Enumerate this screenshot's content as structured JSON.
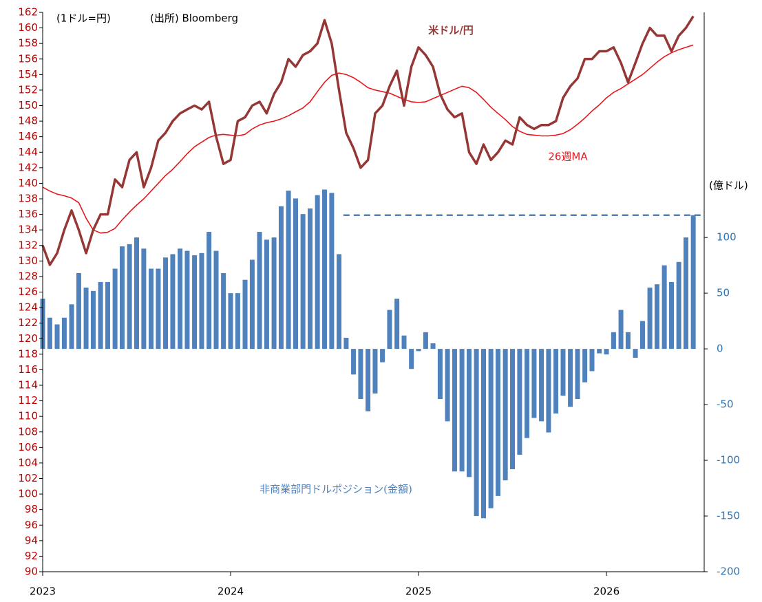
{
  "chart_data": {
    "type": "combo",
    "annotations": [
      "(1ドル=円)",
      "(出所) Bloomberg",
      "(億ドル)"
    ],
    "x": [
      2023.0,
      2023.038,
      2023.077,
      2023.115,
      2023.154,
      2023.192,
      2023.231,
      2023.269,
      2023.308,
      2023.346,
      2023.385,
      2023.423,
      2023.462,
      2023.5,
      2023.538,
      2023.577,
      2023.615,
      2023.654,
      2023.692,
      2023.731,
      2023.769,
      2023.808,
      2023.846,
      2023.885,
      2023.923,
      2023.962,
      2024.0,
      2024.038,
      2024.077,
      2024.115,
      2024.154,
      2024.192,
      2024.231,
      2024.269,
      2024.308,
      2024.346,
      2024.385,
      2024.423,
      2024.462,
      2024.5,
      2024.538,
      2024.577,
      2024.615,
      2024.654,
      2024.692,
      2024.731,
      2024.769,
      2024.808,
      2024.846,
      2024.885,
      2024.923,
      2024.962,
      2025.0,
      2025.038,
      2025.077,
      2025.115,
      2025.154,
      2025.192,
      2025.231,
      2025.269,
      2025.308,
      2025.346,
      2025.385,
      2025.423,
      2025.462,
      2025.5,
      2025.538,
      2025.577,
      2025.615,
      2025.654,
      2025.692,
      2025.731,
      2025.769,
      2025.808,
      2025.846,
      2025.885,
      2025.923,
      2025.962,
      2026.0,
      2026.038,
      2026.077,
      2026.115,
      2026.154,
      2026.192,
      2026.231,
      2026.269,
      2026.308,
      2026.346,
      2026.385,
      2026.423,
      2026.462
    ],
    "series": [
      {
        "name": "非商業部門ドルポジション(金額)",
        "kind": "bar",
        "axis": "y2",
        "color": "#4f81bd",
        "values": [
          45,
          28,
          22,
          28,
          40,
          68,
          55,
          52,
          60,
          60,
          72,
          92,
          94,
          100,
          90,
          72,
          72,
          82,
          85,
          90,
          88,
          84,
          86,
          105,
          88,
          68,
          50,
          50,
          62,
          80,
          105,
          98,
          100,
          128,
          142,
          135,
          121,
          126,
          138,
          143,
          140,
          85,
          10,
          -23,
          -45,
          -56,
          -40,
          -12,
          35,
          45,
          12,
          -18,
          -2,
          15,
          5,
          -45,
          -65,
          -110,
          -110,
          -115,
          -150,
          -152,
          -143,
          -132,
          -118,
          -108,
          -95,
          -80,
          -62,
          -65,
          -75,
          -58,
          -42,
          -52,
          -45,
          -30,
          -20,
          -4,
          -5,
          15,
          35,
          15,
          -8,
          25,
          55,
          58,
          75,
          60,
          78,
          100,
          120
        ]
      },
      {
        "name": "26週MA",
        "kind": "line",
        "axis": "y",
        "color": "#e8161b",
        "values": [
          139.5,
          139,
          138.6,
          138.4,
          138.1,
          137.5,
          135.5,
          134,
          133.6,
          133.7,
          134.2,
          135.3,
          136.3,
          137.2,
          138,
          139,
          140,
          141,
          141.8,
          142.8,
          143.8,
          144.7,
          145.3,
          145.9,
          146.2,
          146.3,
          146.2,
          146.1,
          146.3,
          147,
          147.5,
          147.8,
          148,
          148.3,
          148.7,
          149.2,
          149.7,
          150.5,
          151.8,
          153,
          153.9,
          154.2,
          154,
          153.6,
          153,
          152.3,
          152,
          151.8,
          151.6,
          151.2,
          150.8,
          150.5,
          150.4,
          150.5,
          150.9,
          151.3,
          151.7,
          152.1,
          152.5,
          152.3,
          151.7,
          150.8,
          149.8,
          149,
          148.2,
          147.3,
          146.7,
          146.3,
          146.2,
          146.1,
          146.1,
          146.2,
          146.4,
          146.9,
          147.6,
          148.4,
          149.3,
          150.1,
          151,
          151.7,
          152.2,
          152.8,
          153.4,
          154,
          154.8,
          155.6,
          156.3,
          156.8,
          157.2,
          157.5,
          157.8
        ]
      },
      {
        "name": "米ドル/円",
        "kind": "line",
        "axis": "y",
        "color": "#953735",
        "values": [
          132,
          129.5,
          131,
          134,
          136.5,
          134,
          131,
          134,
          136,
          136,
          140.5,
          139.5,
          143,
          144,
          139.5,
          142,
          145.5,
          146.5,
          148,
          149,
          149.5,
          150,
          149.5,
          150.5,
          146,
          142.5,
          143,
          148,
          148.5,
          150,
          150.5,
          149,
          151.5,
          153,
          156,
          155,
          156.5,
          157,
          158,
          161,
          158,
          152,
          146.5,
          144.5,
          142,
          143,
          149,
          150,
          152.5,
          154.5,
          150,
          155,
          157.5,
          156.5,
          155,
          151.5,
          149.5,
          148.5,
          149,
          144,
          142.5,
          145,
          143,
          144,
          145.5,
          145,
          148.5,
          147.5,
          147,
          147.5,
          147.5,
          148,
          151,
          152.5,
          153.5,
          156,
          156,
          157,
          157,
          157.5,
          155.5,
          153,
          155.5,
          158,
          160,
          159,
          159,
          157,
          159,
          160,
          161.5
        ]
      }
    ],
    "reference_line": {
      "axis": "y2",
      "value": 120,
      "x": [
        2024.6,
        2026.52
      ],
      "color": "#4f81bd"
    },
    "xlim": [
      2023,
      2026.52
    ],
    "xticks": [
      2023,
      2024,
      2025,
      2026
    ],
    "ylim": [
      90,
      162
    ],
    "yticks": [
      90,
      92,
      94,
      96,
      98,
      100,
      102,
      104,
      106,
      108,
      110,
      112,
      114,
      116,
      118,
      120,
      122,
      124,
      126,
      128,
      130,
      132,
      134,
      136,
      138,
      140,
      142,
      144,
      146,
      148,
      150,
      152,
      154,
      156,
      158,
      160,
      162
    ],
    "y2lim": [
      -200,
      302
    ],
    "y2ticks": [
      -200,
      -150,
      -100,
      -50,
      0,
      50,
      100
    ],
    "ytick_color": "#c00000",
    "y2tick_color": "#2e75b6"
  }
}
